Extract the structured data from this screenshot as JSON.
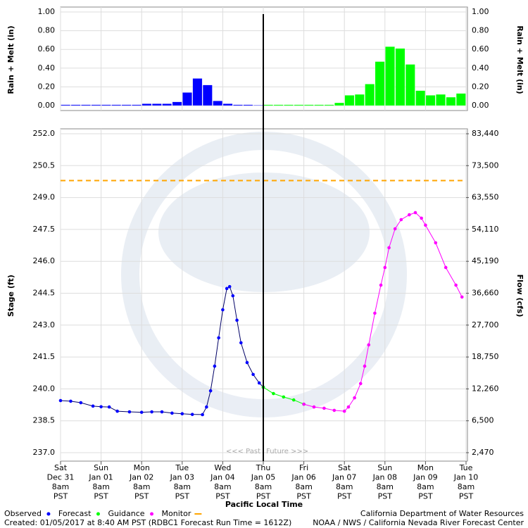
{
  "chart_data": [
    {
      "type": "bar",
      "ylabel": "Rain + Melt (in)",
      "y2label": "Rain + Melt (in)",
      "xlim": [
        0,
        10
      ],
      "ylim": [
        0,
        1
      ],
      "yticks": [
        {
          "value": 0,
          "label": "0.00"
        },
        {
          "value": 0.2,
          "label": "0.20"
        },
        {
          "value": 0.4,
          "label": "0.40"
        },
        {
          "value": 0.6,
          "label": "0.60"
        },
        {
          "value": 0.8,
          "label": "0.80"
        },
        {
          "value": 1,
          "label": "1.00"
        }
      ],
      "grid": true,
      "series": [
        {
          "color": "#0000ff",
          "x": [
            0,
            0.25,
            0.5,
            0.75,
            1,
            1.25,
            1.5,
            1.75,
            2,
            2.25,
            2.5,
            2.75,
            3,
            3.25,
            3.5,
            3.75,
            4,
            4.25,
            4.5,
            4.75
          ],
          "values": [
            0.01,
            0.01,
            0.01,
            0.01,
            0.01,
            0.01,
            0.01,
            0.01,
            0.02,
            0.02,
            0.02,
            0.04,
            0.14,
            0.29,
            0.22,
            0.05,
            0.02,
            0.01,
            0.01,
            0.005
          ]
        },
        {
          "color": "#00ff00",
          "x": [
            5,
            5.25,
            5.5,
            5.75,
            6,
            6.25,
            6.5,
            6.75,
            7,
            7.25,
            7.5,
            7.75,
            8,
            8.25,
            8.5,
            8.75,
            9,
            9.25,
            9.5,
            9.75
          ],
          "values": [
            0.01,
            0.01,
            0.01,
            0.01,
            0.01,
            0.01,
            0.01,
            0.03,
            0.11,
            0.12,
            0.23,
            0.47,
            0.63,
            0.61,
            0.44,
            0.16,
            0.11,
            0.12,
            0.09,
            0.13
          ]
        }
      ]
    },
    {
      "type": "line",
      "ylabel": "Stage (ft)",
      "y2label": "Flow (cfs)",
      "xlabel": "Pacific Local Time",
      "xlim": [
        0,
        10
      ],
      "xticks": [
        {
          "value": 0,
          "lines": [
            "Sat",
            "Dec 31",
            "8am",
            "PST"
          ]
        },
        {
          "value": 1,
          "lines": [
            "Sun",
            "Jan 01",
            "8am",
            "PST"
          ]
        },
        {
          "value": 2,
          "lines": [
            "Mon",
            "Jan 02",
            "8am",
            "PST"
          ]
        },
        {
          "value": 3,
          "lines": [
            "Tue",
            "Jan 03",
            "8am",
            "PST"
          ]
        },
        {
          "value": 4,
          "lines": [
            "Wed",
            "Jan 04",
            "8am",
            "PST"
          ]
        },
        {
          "value": 5,
          "lines": [
            "Thu",
            "Jan 05",
            "8am",
            "PST"
          ]
        },
        {
          "value": 6,
          "lines": [
            "Fri",
            "Jan 06",
            "8am",
            "PST"
          ]
        },
        {
          "value": 7,
          "lines": [
            "Sat",
            "Jan 07",
            "8am",
            "PST"
          ]
        },
        {
          "value": 8,
          "lines": [
            "Sun",
            "Jan 08",
            "8am",
            "PST"
          ]
        },
        {
          "value": 9,
          "lines": [
            "Mon",
            "Jan 09",
            "8am",
            "PST"
          ]
        },
        {
          "value": 10,
          "lines": [
            "Tue",
            "Jan 10",
            "8am",
            "PST"
          ]
        }
      ],
      "ylim": [
        237,
        252
      ],
      "yticks": [
        {
          "value": 237,
          "label": "237.0"
        },
        {
          "value": 238.5,
          "label": "238.5"
        },
        {
          "value": 240,
          "label": "240.0"
        },
        {
          "value": 241.5,
          "label": "241.5"
        },
        {
          "value": 243,
          "label": "243.0"
        },
        {
          "value": 244.5,
          "label": "244.5"
        },
        {
          "value": 246,
          "label": "246.0"
        },
        {
          "value": 247.5,
          "label": "247.5"
        },
        {
          "value": 249,
          "label": "249.0"
        },
        {
          "value": 250.5,
          "label": "250.5"
        },
        {
          "value": 252,
          "label": "252.0"
        }
      ],
      "y2lim": [
        2470,
        83440
      ],
      "y2ticks": [
        {
          "value": 2470,
          "label": "2,470"
        },
        {
          "value": 6500,
          "label": "6,500"
        },
        {
          "value": 12260,
          "label": "12,260"
        },
        {
          "value": 18750,
          "label": "18,750"
        },
        {
          "value": 27700,
          "label": "27,700"
        },
        {
          "value": 36660,
          "label": "36,660"
        },
        {
          "value": 45190,
          "label": "45,190"
        },
        {
          "value": 54110,
          "label": "54,110"
        },
        {
          "value": 63550,
          "label": "63,550"
        },
        {
          "value": 73500,
          "label": "73,500"
        },
        {
          "value": 83440,
          "label": "83,440"
        }
      ],
      "grid": true,
      "series": [
        {
          "name": "Observed",
          "color": "#0000ff",
          "x": [
            0,
            0.25,
            0.5,
            0.8,
            1,
            1.2,
            1.4,
            1.7,
            2,
            2.25,
            2.5,
            2.75,
            3,
            3.25,
            3.5,
            3.6,
            3.7,
            3.8,
            3.9,
            4,
            4.1,
            4.17,
            4.25,
            4.35,
            4.45,
            4.6,
            4.75,
            4.9,
            5
          ],
          "values": [
            239.45,
            239.42,
            239.35,
            239.19,
            239.16,
            239.15,
            238.95,
            238.92,
            238.9,
            238.92,
            238.92,
            238.86,
            238.83,
            238.8,
            238.79,
            239.15,
            239.91,
            241.07,
            242.4,
            243.72,
            244.72,
            244.81,
            244.38,
            243.23,
            242.17,
            241.24,
            240.68,
            240.28,
            240.08
          ]
        },
        {
          "name": "Forecast",
          "color": "#00ff00",
          "x": [
            5,
            5.25,
            5.5,
            5.75,
            6
          ],
          "values": [
            240.08,
            239.78,
            239.62,
            239.48,
            239.28
          ]
        },
        {
          "name": "Guidance",
          "color": "#ff00ff",
          "x": [
            6,
            6.25,
            6.5,
            6.75,
            7,
            7.1,
            7.25,
            7.4,
            7.5,
            7.6,
            7.75,
            7.9,
            8,
            8.1,
            8.25,
            8.4,
            8.6,
            8.75,
            8.9,
            9,
            9.25,
            9.5,
            9.75,
            9.9
          ],
          "values": [
            239.28,
            239.15,
            239.09,
            238.99,
            238.95,
            239.15,
            239.58,
            240.25,
            241.07,
            242.07,
            243.56,
            244.88,
            245.71,
            246.64,
            247.53,
            247.96,
            248.19,
            248.29,
            248.03,
            247.7,
            246.87,
            245.71,
            244.88,
            244.32
          ]
        }
      ],
      "threshold": {
        "name": "Monitor",
        "value": 249.8,
        "color": "#ffa500"
      },
      "now": 5,
      "annotations": [
        "<<< Past",
        "Future >>>"
      ]
    }
  ],
  "footer": {
    "left": "Created: 01/05/2017 at 8:40 AM PST  (RDBC1 Forecast Run Time = 1612Z)",
    "right1": "California Department of Water Resources",
    "right2": "NOAA / NWS / California Nevada River Forecast Center"
  }
}
